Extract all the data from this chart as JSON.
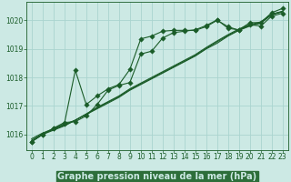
{
  "background_color": "#cce9e4",
  "plot_bg_color": "#cce9e4",
  "grid_color": "#aad4cf",
  "line_color": "#1a5c28",
  "xlabel": "Graphe pression niveau de la mer (hPa)",
  "xlabel_fontsize": 7.0,
  "xlabel_bg": "#2d6e3a",
  "xlabel_fg": "#cce9e4",
  "xlim": [
    -0.5,
    23.5
  ],
  "ylim": [
    1015.45,
    1020.65
  ],
  "xticks": [
    0,
    1,
    2,
    3,
    4,
    5,
    6,
    7,
    8,
    9,
    10,
    11,
    12,
    13,
    14,
    15,
    16,
    17,
    18,
    19,
    20,
    21,
    22,
    23
  ],
  "yticks": [
    1016,
    1017,
    1018,
    1019,
    1020
  ],
  "tick_fontsize": 5.5,
  "series_plain": [
    [
      1015.75,
      1016.0,
      1016.15,
      1016.3,
      1016.5,
      1016.7,
      1016.9,
      1017.1,
      1017.3,
      1017.55,
      1017.75,
      1017.95,
      1018.15,
      1018.35,
      1018.55,
      1018.75,
      1019.0,
      1019.2,
      1019.45,
      1019.65,
      1019.8,
      1019.9,
      1020.2,
      1020.3
    ],
    [
      1015.85,
      1016.05,
      1016.2,
      1016.35,
      1016.5,
      1016.72,
      1016.95,
      1017.15,
      1017.35,
      1017.6,
      1017.8,
      1018.0,
      1018.2,
      1018.4,
      1018.6,
      1018.8,
      1019.05,
      1019.28,
      1019.5,
      1019.7,
      1019.85,
      1019.95,
      1020.22,
      1020.32
    ],
    [
      1015.8,
      1016.02,
      1016.18,
      1016.32,
      1016.5,
      1016.71,
      1016.93,
      1017.13,
      1017.33,
      1017.57,
      1017.77,
      1017.97,
      1018.17,
      1018.37,
      1018.57,
      1018.77,
      1019.02,
      1019.25,
      1019.47,
      1019.67,
      1019.82,
      1019.92,
      1020.21,
      1020.31
    ]
  ],
  "series_marked": [
    [
      1015.75,
      1016.0,
      1016.2,
      1016.38,
      1018.25,
      1017.05,
      1017.35,
      1017.6,
      1017.75,
      1018.28,
      1019.35,
      1019.45,
      1019.62,
      1019.65,
      1019.65,
      1019.65,
      1019.78,
      1020.0,
      1019.78,
      1019.65,
      1019.85,
      1019.8,
      1020.15,
      1020.25
    ],
    [
      1015.75,
      1016.0,
      1016.22,
      1016.42,
      1016.45,
      1016.65,
      1017.05,
      1017.55,
      1017.72,
      1017.82,
      1018.82,
      1018.92,
      1019.38,
      1019.57,
      1019.62,
      1019.67,
      1019.82,
      1020.02,
      1019.72,
      1019.67,
      1019.92,
      1019.92,
      1020.27,
      1020.42
    ]
  ],
  "marker_size": 2.8,
  "line_width": 0.8
}
